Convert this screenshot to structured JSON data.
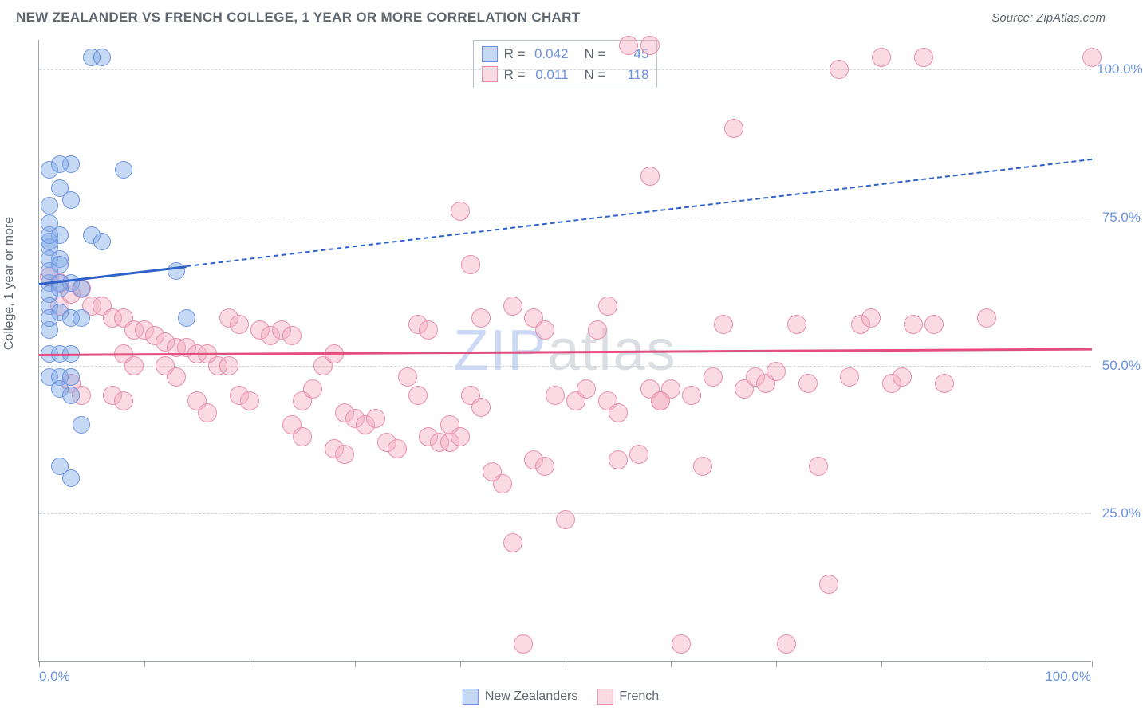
{
  "header": {
    "title": "NEW ZEALANDER VS FRENCH COLLEGE, 1 YEAR OR MORE CORRELATION CHART",
    "source_label": "Source: ",
    "source_name": "ZipAtlas.com"
  },
  "chart": {
    "type": "scatter",
    "y_axis_label": "College, 1 year or more",
    "xlim": [
      0,
      100
    ],
    "ylim": [
      0,
      105
    ],
    "x_tick_positions": [
      0,
      10,
      20,
      30,
      40,
      50,
      60,
      70,
      80,
      90,
      100
    ],
    "x_axis_min_label": "0.0%",
    "x_axis_max_label": "100.0%",
    "y_gridlines": [
      {
        "value": 25,
        "label": "25.0%"
      },
      {
        "value": 50,
        "label": "50.0%"
      },
      {
        "value": 75,
        "label": "75.0%"
      },
      {
        "value": 100,
        "label": "100.0%"
      }
    ],
    "background_color": "#ffffff",
    "grid_color": "#cfd6dd",
    "axis_color": "#9aa3ad",
    "tick_label_color": "#6b91e0",
    "watermark_text_1": "ZIP",
    "watermark_text_2": "atlas"
  },
  "series": {
    "nz": {
      "label": "New Zealanders",
      "fill_color": "rgba(128,171,231,0.45)",
      "stroke_color": "#6b91e0",
      "marker_radius": 11,
      "trend_color": "#2e62c9",
      "trend": {
        "y_at_x0": 64,
        "y_at_x100": 85
      },
      "solid_until_x": 14,
      "R": "0.042",
      "N": "45",
      "points": [
        [
          5,
          102
        ],
        [
          6,
          102
        ],
        [
          1,
          83
        ],
        [
          3,
          84
        ],
        [
          2,
          84
        ],
        [
          8,
          83
        ],
        [
          1,
          77
        ],
        [
          1,
          70
        ],
        [
          2,
          72
        ],
        [
          1,
          71
        ],
        [
          2,
          68
        ],
        [
          1,
          68
        ],
        [
          2,
          67
        ],
        [
          1,
          64
        ],
        [
          2,
          64
        ],
        [
          3,
          64
        ],
        [
          1,
          62
        ],
        [
          2,
          63
        ],
        [
          5,
          72
        ],
        [
          6,
          71
        ],
        [
          1,
          60
        ],
        [
          2,
          59
        ],
        [
          3,
          58
        ],
        [
          4,
          58
        ],
        [
          1,
          56
        ],
        [
          1,
          52
        ],
        [
          1,
          48
        ],
        [
          2,
          48
        ],
        [
          3,
          48
        ],
        [
          2,
          46
        ],
        [
          13,
          66
        ],
        [
          14,
          58
        ],
        [
          3,
          45
        ],
        [
          1,
          72
        ],
        [
          4,
          40
        ],
        [
          2,
          33
        ],
        [
          3,
          31
        ],
        [
          1,
          74
        ],
        [
          1,
          66
        ],
        [
          2,
          52
        ],
        [
          3,
          52
        ],
        [
          2,
          80
        ],
        [
          3,
          78
        ],
        [
          1,
          58
        ],
        [
          4,
          63
        ]
      ]
    },
    "fr": {
      "label": "French",
      "fill_color": "rgba(244,172,193,0.45)",
      "stroke_color": "#e98fab",
      "marker_radius": 12,
      "trend_color": "#e24e7f",
      "trend": {
        "y_at_x0": 52,
        "y_at_x100": 53
      },
      "R": "0.011",
      "N": "118",
      "points": [
        [
          1,
          65
        ],
        [
          2,
          60
        ],
        [
          4,
          63
        ],
        [
          5,
          60
        ],
        [
          6,
          60
        ],
        [
          7,
          58
        ],
        [
          8,
          58
        ],
        [
          9,
          56
        ],
        [
          10,
          56
        ],
        [
          11,
          55
        ],
        [
          12,
          54
        ],
        [
          13,
          53
        ],
        [
          14,
          53
        ],
        [
          15,
          52
        ],
        [
          16,
          52
        ],
        [
          17,
          50
        ],
        [
          18,
          50
        ],
        [
          19,
          45
        ],
        [
          20,
          44
        ],
        [
          21,
          56
        ],
        [
          22,
          55
        ],
        [
          23,
          56
        ],
        [
          24,
          55
        ],
        [
          25,
          44
        ],
        [
          26,
          46
        ],
        [
          27,
          50
        ],
        [
          28,
          52
        ],
        [
          29,
          42
        ],
        [
          30,
          41
        ],
        [
          31,
          40
        ],
        [
          32,
          41
        ],
        [
          33,
          37
        ],
        [
          34,
          36
        ],
        [
          35,
          48
        ],
        [
          36,
          45
        ],
        [
          37,
          38
        ],
        [
          38,
          37
        ],
        [
          39,
          37
        ],
        [
          40,
          76
        ],
        [
          41,
          67
        ],
        [
          42,
          58
        ],
        [
          43,
          32
        ],
        [
          44,
          30
        ],
        [
          45,
          60
        ],
        [
          45,
          20
        ],
        [
          46,
          3
        ],
        [
          47,
          34
        ],
        [
          48,
          33
        ],
        [
          49,
          45
        ],
        [
          50,
          24
        ],
        [
          51,
          44
        ],
        [
          52,
          46
        ],
        [
          53,
          56
        ],
        [
          54,
          60
        ],
        [
          55,
          34
        ],
        [
          56,
          104
        ],
        [
          57,
          35
        ],
        [
          58,
          82
        ],
        [
          59,
          44
        ],
        [
          60,
          46
        ],
        [
          61,
          3
        ],
        [
          62,
          45
        ],
        [
          63,
          33
        ],
        [
          64,
          48
        ],
        [
          65,
          57
        ],
        [
          66,
          90
        ],
        [
          67,
          46
        ],
        [
          68,
          48
        ],
        [
          69,
          47
        ],
        [
          70,
          49
        ],
        [
          71,
          3
        ],
        [
          72,
          57
        ],
        [
          73,
          47
        ],
        [
          74,
          33
        ],
        [
          75,
          13
        ],
        [
          76,
          100
        ],
        [
          77,
          48
        ],
        [
          78,
          57
        ],
        [
          79,
          58
        ],
        [
          80,
          102
        ],
        [
          81,
          47
        ],
        [
          82,
          48
        ],
        [
          83,
          57
        ],
        [
          84,
          102
        ],
        [
          85,
          57
        ],
        [
          86,
          47
        ],
        [
          58,
          104
        ],
        [
          90,
          58
        ],
        [
          100,
          102
        ],
        [
          7,
          45
        ],
        [
          8,
          44
        ],
        [
          3,
          47
        ],
        [
          4,
          45
        ],
        [
          18,
          58
        ],
        [
          19,
          57
        ],
        [
          39,
          40
        ],
        [
          40,
          38
        ],
        [
          36,
          57
        ],
        [
          37,
          56
        ],
        [
          24,
          40
        ],
        [
          25,
          38
        ],
        [
          28,
          36
        ],
        [
          29,
          35
        ],
        [
          47,
          58
        ],
        [
          48,
          56
        ],
        [
          54,
          44
        ],
        [
          55,
          42
        ],
        [
          58,
          46
        ],
        [
          59,
          44
        ],
        [
          2,
          64
        ],
        [
          3,
          62
        ],
        [
          41,
          45
        ],
        [
          42,
          43
        ],
        [
          12,
          50
        ],
        [
          13,
          48
        ],
        [
          15,
          44
        ],
        [
          16,
          42
        ],
        [
          8,
          52
        ],
        [
          9,
          50
        ]
      ]
    }
  },
  "top_legend": {
    "r_label": "R =",
    "n_label": "N ="
  }
}
